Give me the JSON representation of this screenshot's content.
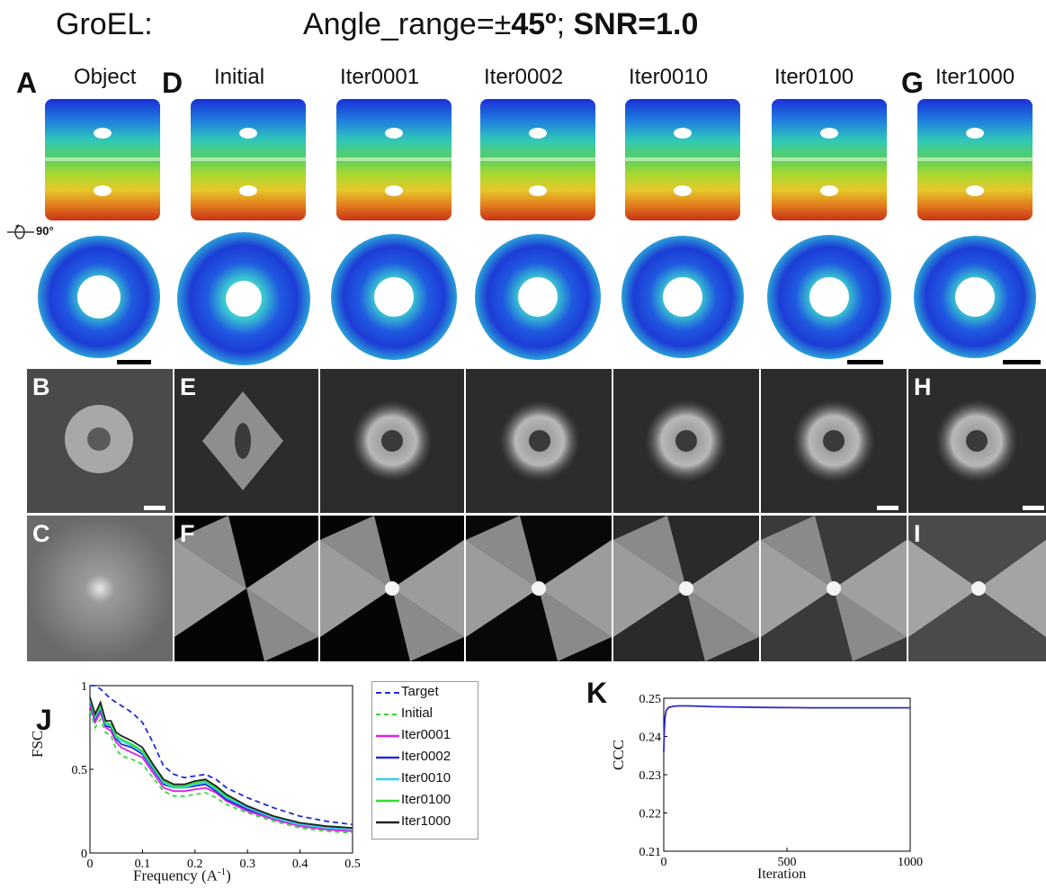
{
  "figure": {
    "title_left": "GroEL:",
    "title_angle_prefix": "Angle_range=±",
    "title_angle_value": "45º",
    "title_sep": "; ",
    "title_snr": "SNR=1.0",
    "rotation_label": "90°"
  },
  "panels": {
    "A": "A",
    "B": "B",
    "C": "C",
    "D": "D",
    "E": "E",
    "F": "F",
    "G": "G",
    "H": "H",
    "I": "I",
    "J": "J",
    "K": "K"
  },
  "columns": [
    "Object",
    "Initial",
    "Iter0001",
    "Iter0002",
    "Iter0010",
    "Iter0100",
    "Iter1000"
  ],
  "colors": {
    "top_band": "#1a3fd6",
    "mid_band": "#30c8c0",
    "green_band": "#7ed248",
    "yellow_band": "#e6d22a",
    "bottom_band": "#d84418",
    "ring": "#2a6fe6"
  },
  "chart_data": [
    {
      "type": "line",
      "xlabel": "Frequency (A",
      "xlabel_sup": "-1",
      "xlabel_end": ")",
      "ylabel": "FSC",
      "xlim": [
        0,
        0.5
      ],
      "ylim": [
        0,
        1
      ],
      "xticks": [
        "0",
        "0.1",
        "0.2",
        "0.3",
        "0.4",
        "0.5"
      ],
      "yticks": [
        "0",
        "0.5",
        "1"
      ],
      "x": [
        0,
        0.01,
        0.02,
        0.03,
        0.04,
        0.05,
        0.06,
        0.08,
        0.1,
        0.12,
        0.14,
        0.16,
        0.18,
        0.2,
        0.22,
        0.24,
        0.26,
        0.3,
        0.35,
        0.4,
        0.45,
        0.5
      ],
      "series": [
        {
          "name": "Target",
          "color": "#1f2bd6",
          "dash": "6,4",
          "values": [
            1.0,
            1.0,
            0.98,
            0.95,
            0.92,
            0.9,
            0.88,
            0.84,
            0.78,
            0.66,
            0.52,
            0.47,
            0.45,
            0.46,
            0.47,
            0.44,
            0.39,
            0.33,
            0.27,
            0.22,
            0.19,
            0.17
          ]
        },
        {
          "name": "Initial",
          "color": "#3ad83a",
          "dash": "5,4",
          "values": [
            0.85,
            0.75,
            0.8,
            0.72,
            0.7,
            0.62,
            0.58,
            0.56,
            0.53,
            0.45,
            0.37,
            0.34,
            0.34,
            0.35,
            0.36,
            0.33,
            0.29,
            0.24,
            0.19,
            0.15,
            0.13,
            0.12
          ]
        },
        {
          "name": "Iter0001",
          "color": "#e020e0",
          "dash": "",
          "values": [
            0.88,
            0.78,
            0.84,
            0.75,
            0.73,
            0.66,
            0.63,
            0.6,
            0.57,
            0.48,
            0.39,
            0.37,
            0.37,
            0.38,
            0.39,
            0.36,
            0.31,
            0.25,
            0.2,
            0.16,
            0.14,
            0.13
          ]
        },
        {
          "name": "Iter0002",
          "color": "#2a2ad0",
          "dash": "",
          "values": [
            0.9,
            0.8,
            0.86,
            0.76,
            0.75,
            0.68,
            0.65,
            0.63,
            0.59,
            0.5,
            0.41,
            0.39,
            0.39,
            0.4,
            0.41,
            0.37,
            0.32,
            0.26,
            0.21,
            0.17,
            0.15,
            0.14
          ]
        },
        {
          "name": "Iter0010",
          "color": "#30d0f0",
          "dash": "",
          "values": [
            0.91,
            0.81,
            0.87,
            0.77,
            0.76,
            0.69,
            0.67,
            0.64,
            0.6,
            0.51,
            0.42,
            0.39,
            0.39,
            0.41,
            0.42,
            0.38,
            0.33,
            0.27,
            0.21,
            0.17,
            0.15,
            0.14
          ]
        },
        {
          "name": "Iter0100",
          "color": "#30e030",
          "dash": "",
          "values": [
            0.92,
            0.82,
            0.88,
            0.78,
            0.77,
            0.7,
            0.68,
            0.65,
            0.61,
            0.52,
            0.43,
            0.4,
            0.4,
            0.42,
            0.43,
            0.39,
            0.34,
            0.28,
            0.22,
            0.18,
            0.16,
            0.15
          ]
        },
        {
          "name": "Iter1000",
          "color": "#222222",
          "dash": "",
          "values": [
            0.93,
            0.83,
            0.9,
            0.79,
            0.79,
            0.72,
            0.7,
            0.67,
            0.63,
            0.53,
            0.44,
            0.41,
            0.41,
            0.43,
            0.44,
            0.4,
            0.35,
            0.28,
            0.22,
            0.18,
            0.16,
            0.15
          ]
        }
      ]
    },
    {
      "type": "line",
      "xlabel": "Iteration",
      "ylabel": "CCC",
      "xlim": [
        0,
        1000
      ],
      "ylim": [
        0.21,
        0.25
      ],
      "xticks": [
        "0",
        "500",
        "1000"
      ],
      "yticks": [
        "0.21",
        "0.22",
        "0.23",
        "0.24",
        "0.25"
      ],
      "x": [
        0,
        2,
        5,
        10,
        20,
        40,
        60,
        100,
        200,
        400,
        600,
        800,
        1000
      ],
      "series": [
        {
          "color": "#2a2ad0",
          "values": [
            0.236,
            0.241,
            0.245,
            0.2468,
            0.2476,
            0.2479,
            0.248,
            0.248,
            0.2478,
            0.2476,
            0.2475,
            0.2475,
            0.2475
          ]
        }
      ]
    }
  ]
}
